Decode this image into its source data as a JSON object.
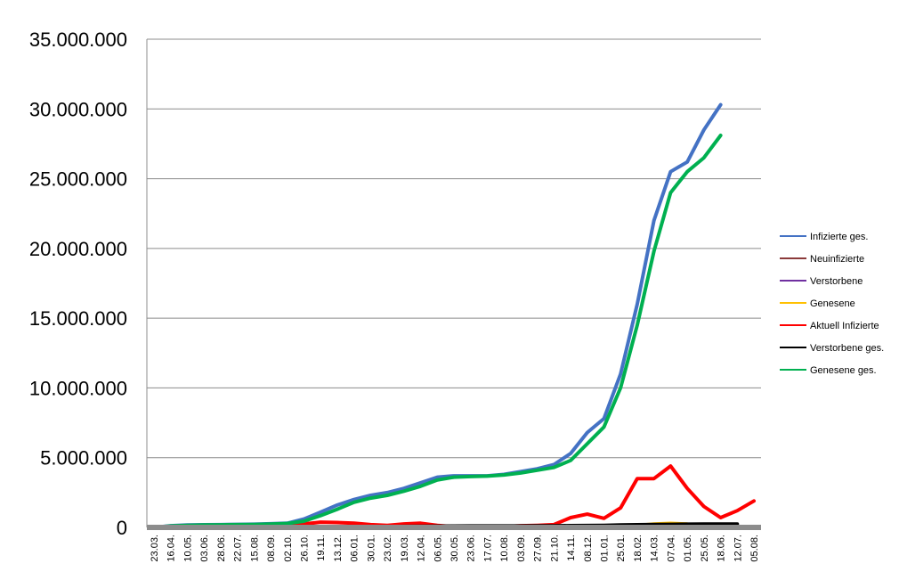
{
  "chart_data": {
    "type": "line",
    "title": "",
    "xlabel": "",
    "ylabel": "",
    "ylim": [
      0,
      35000000
    ],
    "y_ticks": [
      {
        "value": 0,
        "label": "0"
      },
      {
        "value": 5000000,
        "label": "5.000.000"
      },
      {
        "value": 10000000,
        "label": "10.000.000"
      },
      {
        "value": 15000000,
        "label": "15.000.000"
      },
      {
        "value": 20000000,
        "label": "20.000.000"
      },
      {
        "value": 25000000,
        "label": "25.000.000"
      },
      {
        "value": 30000000,
        "label": "30.000.000"
      },
      {
        "value": 35000000,
        "label": "35.000.000"
      }
    ],
    "grid": true,
    "legend_position": "right",
    "categories": [
      "23.03.",
      "16.04.",
      "10.05.",
      "03.06.",
      "28.06.",
      "22.07.",
      "15.08.",
      "08.09.",
      "02.10.",
      "26.10.",
      "19.11.",
      "13.12.",
      "06.01.",
      "30.01.",
      "23.02.",
      "19.03.",
      "12.04.",
      "06.05.",
      "30.05.",
      "23.06.",
      "17.07.",
      "10.08.",
      "03.09.",
      "27.09.",
      "21.10.",
      "14.11.",
      "08.12.",
      "01.01.",
      "25.01.",
      "18.02.",
      "14.03.",
      "07.04.",
      "01.05.",
      "25.05.",
      "18.06.",
      "12.07.",
      "05.08."
    ],
    "series": [
      {
        "name": "Infizierte ges.",
        "color": "#4472C4",
        "width": 4,
        "values": [
          0,
          120000,
          170000,
          190000,
          200000,
          220000,
          230000,
          260000,
          300000,
          600000,
          1100000,
          1600000,
          2000000,
          2300000,
          2500000,
          2800000,
          3200000,
          3600000,
          3700000,
          3700000,
          3700000,
          3800000,
          4000000,
          4200000,
          4500000,
          5300000,
          6800000,
          7800000,
          11000000,
          16000000,
          22000000,
          25500000,
          26200000,
          28500000,
          30300000,
          null,
          null
        ]
      },
      {
        "name": "Neuinfizierte",
        "color": "#8B3A3A",
        "width": 2,
        "values": [
          0,
          10000,
          8000,
          6000,
          5000,
          7000,
          10000,
          15000,
          40000,
          80000,
          90000,
          70000,
          60000,
          45000,
          30000,
          50000,
          60000,
          40000,
          15000,
          10000,
          10000,
          20000,
          40000,
          50000,
          70000,
          120000,
          100000,
          80000,
          160000,
          210000,
          260000,
          200000,
          null,
          null,
          null,
          null,
          null
        ]
      },
      {
        "name": "Verstorbene",
        "color": "#7030A0",
        "width": 2,
        "values": [
          0,
          2000,
          1500,
          1000,
          800,
          800,
          1000,
          1500,
          2000,
          4000,
          5000,
          5000,
          4000,
          3000,
          2000,
          2000,
          2000,
          1500,
          1000,
          800,
          800,
          1000,
          1500,
          2000,
          3000,
          5000,
          6000,
          5000,
          7000,
          8000,
          9000,
          6000,
          null,
          null,
          null,
          null,
          null
        ]
      },
      {
        "name": "Genesene",
        "color": "#FFC000",
        "width": 2,
        "values": [
          0,
          8000,
          10000,
          8000,
          6000,
          6000,
          8000,
          10000,
          20000,
          50000,
          70000,
          80000,
          70000,
          60000,
          40000,
          40000,
          50000,
          50000,
          30000,
          15000,
          10000,
          15000,
          30000,
          40000,
          60000,
          100000,
          110000,
          90000,
          150000,
          200000,
          300000,
          350000,
          300000,
          null,
          null,
          null,
          null
        ]
      },
      {
        "name": "Aktuell Infizierte",
        "color": "#FF0000",
        "width": 4,
        "values": [
          0,
          40000,
          30000,
          20000,
          15000,
          20000,
          30000,
          50000,
          100000,
          250000,
          380000,
          350000,
          300000,
          200000,
          150000,
          250000,
          300000,
          150000,
          50000,
          30000,
          30000,
          60000,
          120000,
          150000,
          200000,
          700000,
          950000,
          650000,
          1400000,
          3500000,
          3500000,
          4400000,
          2800000,
          1500000,
          700000,
          1200000,
          1900000
        ]
      },
      {
        "name": "Verstorbene ges.",
        "color": "#000000",
        "width": 4,
        "values": [
          0,
          2000,
          4000,
          5000,
          6000,
          6000,
          7000,
          8000,
          9000,
          12000,
          20000,
          30000,
          40000,
          50000,
          60000,
          70000,
          80000,
          90000,
          95000,
          100000,
          100000,
          102000,
          105000,
          108000,
          115000,
          125000,
          135000,
          150000,
          170000,
          190000,
          210000,
          220000,
          230000,
          235000,
          240000,
          245000,
          null
        ]
      },
      {
        "name": "Genesene ges.",
        "color": "#00B050",
        "width": 4,
        "values": [
          0,
          100000,
          150000,
          170000,
          185000,
          200000,
          210000,
          240000,
          280000,
          450000,
          850000,
          1300000,
          1800000,
          2100000,
          2300000,
          2600000,
          2950000,
          3400000,
          3600000,
          3650000,
          3680000,
          3760000,
          3900000,
          4100000,
          4300000,
          4800000,
          6000000,
          7200000,
          10000000,
          14500000,
          19800000,
          24000000,
          25500000,
          26500000,
          28100000,
          null,
          null
        ]
      }
    ]
  }
}
